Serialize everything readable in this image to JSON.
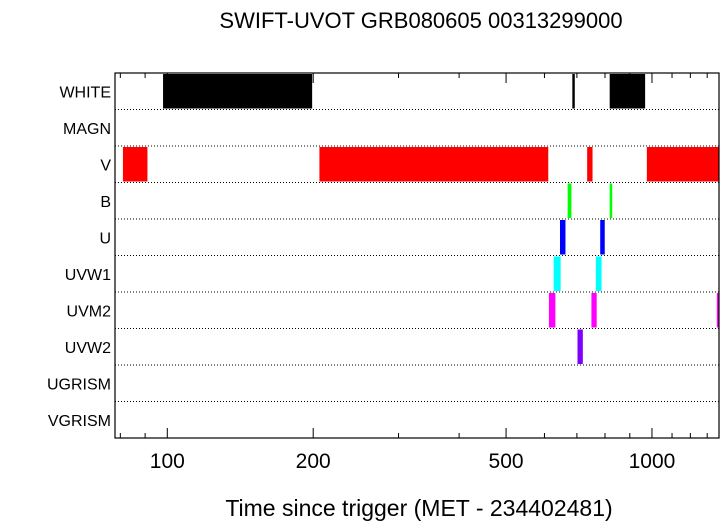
{
  "chart_data": {
    "type": "timeline",
    "title": "SWIFT-UVOT GRB080605 00313299000",
    "xlabel": "Time since trigger (MET - 234402481)",
    "ylabel": "",
    "x_scale": "log",
    "xlim": [
      78,
      1375
    ],
    "x_ticks": [
      100,
      200,
      500,
      1000
    ],
    "x_tick_labels": [
      "100",
      "200",
      "500",
      "1000"
    ],
    "filters": [
      "WHITE",
      "MAGN",
      "V",
      "B",
      "U",
      "UVW1",
      "UVM2",
      "UVW2",
      "UGRISM",
      "VGRISM"
    ],
    "grid": "dotted horizontal row separators",
    "series": [
      {
        "name": "WHITE",
        "color": "#000000",
        "intervals": [
          [
            98,
            199
          ],
          [
            685,
            693
          ],
          [
            818,
            968
          ]
        ]
      },
      {
        "name": "MAGN",
        "color": "#000000",
        "intervals": []
      },
      {
        "name": "V",
        "color": "#ff0000",
        "intervals": [
          [
            81,
            91
          ],
          [
            206,
            611
          ],
          [
            735,
            754
          ],
          [
            976,
            1375
          ]
        ]
      },
      {
        "name": "B",
        "color": "#00ff00",
        "intervals": [
          [
            670,
            682
          ],
          [
            818,
            828
          ]
        ]
      },
      {
        "name": "U",
        "color": "#0000ff",
        "intervals": [
          [
            646,
            663
          ],
          [
            782,
            799
          ]
        ]
      },
      {
        "name": "UVW1",
        "color": "#00ffff",
        "intervals": [
          [
            627,
            648
          ],
          [
            766,
            787
          ]
        ]
      },
      {
        "name": "UVM2",
        "color": "#ff00ff",
        "intervals": [
          [
            613,
            632
          ],
          [
            750,
            769
          ],
          [
            1361,
            1375
          ]
        ]
      },
      {
        "name": "UVW2",
        "color": "#8000ff",
        "intervals": [
          [
            702,
            720
          ]
        ]
      },
      {
        "name": "UGRISM",
        "color": "#000000",
        "intervals": []
      },
      {
        "name": "VGRISM",
        "color": "#000000",
        "intervals": []
      }
    ]
  }
}
